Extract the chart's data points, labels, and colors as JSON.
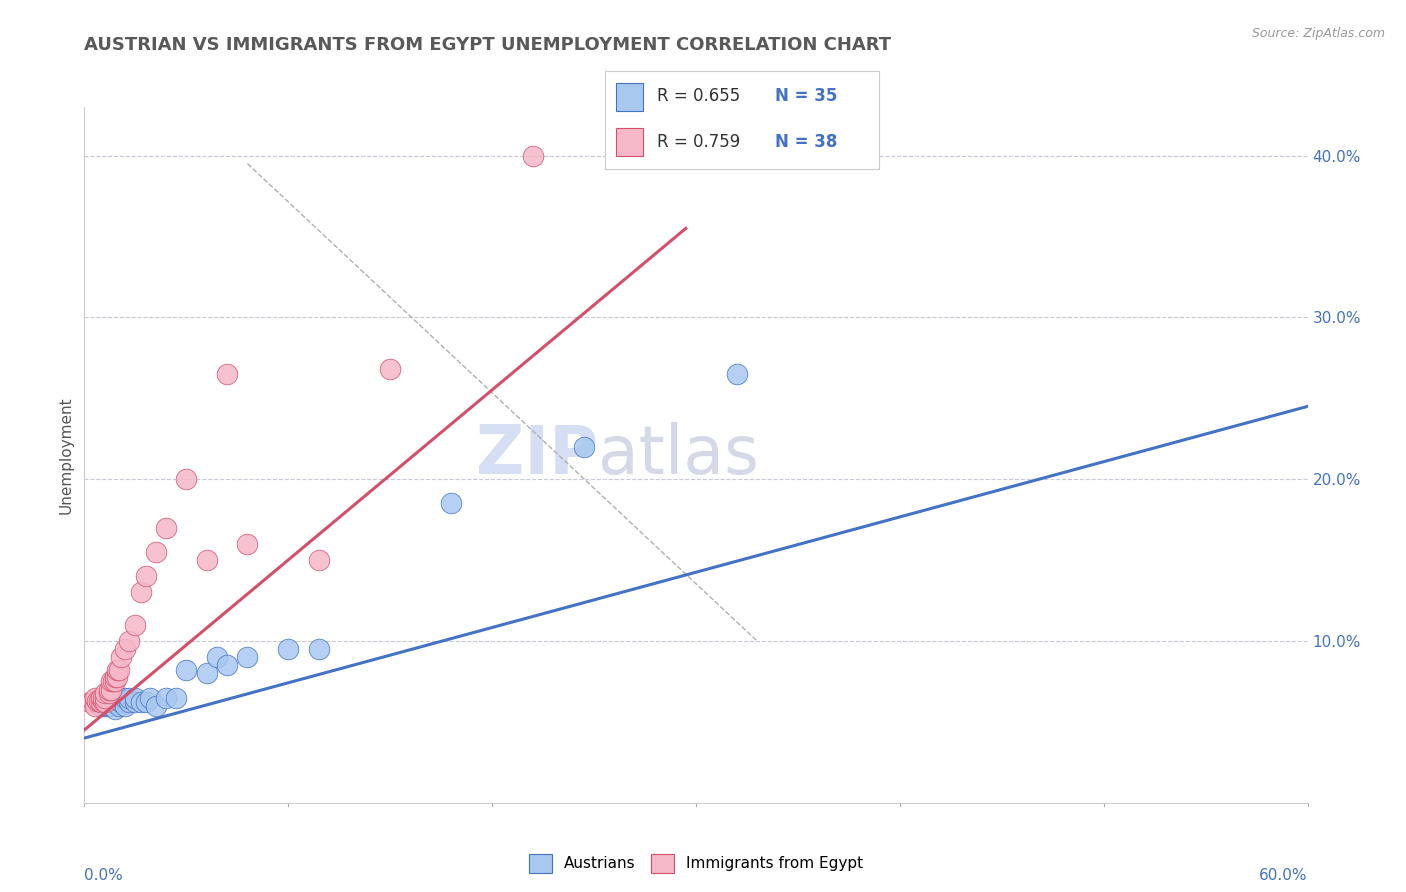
{
  "title": "AUSTRIAN VS IMMIGRANTS FROM EGYPT UNEMPLOYMENT CORRELATION CHART",
  "source": "Source: ZipAtlas.com",
  "ylabel": "Unemployment",
  "xlim": [
    0.0,
    0.6
  ],
  "ylim": [
    0.0,
    0.43
  ],
  "watermark_zip": "ZIP",
  "watermark_atlas": "atlas",
  "legend_r1": "R = 0.655",
  "legend_n1": "N = 35",
  "legend_r2": "R = 0.759",
  "legend_n2": "N = 38",
  "color_austrians_fill": "#a8c8f0",
  "color_egypt_fill": "#f5b8c8",
  "color_line_austrians": "#4472c4",
  "color_line_egypt": "#d4506a",
  "color_title": "#595959",
  "color_axis_labels": "#4472c4",
  "grid_color": "#c8c8d8",
  "austrians_x": [
    0.005,
    0.008,
    0.01,
    0.01,
    0.012,
    0.013,
    0.015,
    0.015,
    0.015,
    0.017,
    0.017,
    0.018,
    0.018,
    0.02,
    0.02,
    0.022,
    0.022,
    0.025,
    0.025,
    0.028,
    0.03,
    0.032,
    0.035,
    0.04,
    0.045,
    0.05,
    0.06,
    0.065,
    0.07,
    0.08,
    0.1,
    0.115,
    0.18,
    0.245,
    0.32
  ],
  "austrians_y": [
    0.062,
    0.06,
    0.06,
    0.062,
    0.06,
    0.06,
    0.058,
    0.062,
    0.065,
    0.06,
    0.063,
    0.062,
    0.065,
    0.06,
    0.065,
    0.062,
    0.065,
    0.062,
    0.065,
    0.062,
    0.062,
    0.065,
    0.06,
    0.065,
    0.065,
    0.082,
    0.08,
    0.09,
    0.085,
    0.09,
    0.095,
    0.095,
    0.185,
    0.22,
    0.265
  ],
  "egypt_x": [
    0.003,
    0.004,
    0.005,
    0.005,
    0.006,
    0.007,
    0.008,
    0.008,
    0.009,
    0.009,
    0.01,
    0.01,
    0.01,
    0.012,
    0.012,
    0.013,
    0.013,
    0.014,
    0.015,
    0.015,
    0.016,
    0.016,
    0.017,
    0.018,
    0.02,
    0.022,
    0.025,
    0.028,
    0.03,
    0.035,
    0.04,
    0.05,
    0.06,
    0.07,
    0.08,
    0.115,
    0.15,
    0.22
  ],
  "egypt_y": [
    0.062,
    0.063,
    0.06,
    0.065,
    0.063,
    0.063,
    0.062,
    0.065,
    0.063,
    0.065,
    0.062,
    0.065,
    0.068,
    0.068,
    0.07,
    0.07,
    0.075,
    0.075,
    0.075,
    0.078,
    0.078,
    0.082,
    0.082,
    0.09,
    0.095,
    0.1,
    0.11,
    0.13,
    0.14,
    0.155,
    0.17,
    0.2,
    0.15,
    0.265,
    0.16,
    0.15,
    0.268,
    0.4
  ],
  "blue_line_x": [
    0.0,
    0.6
  ],
  "blue_line_y": [
    0.04,
    0.245
  ],
  "pink_line_x": [
    0.0,
    0.295
  ],
  "pink_line_y": [
    0.045,
    0.355
  ],
  "diag_line_x": [
    0.08,
    0.33
  ],
  "diag_line_y": [
    0.395,
    0.1
  ]
}
